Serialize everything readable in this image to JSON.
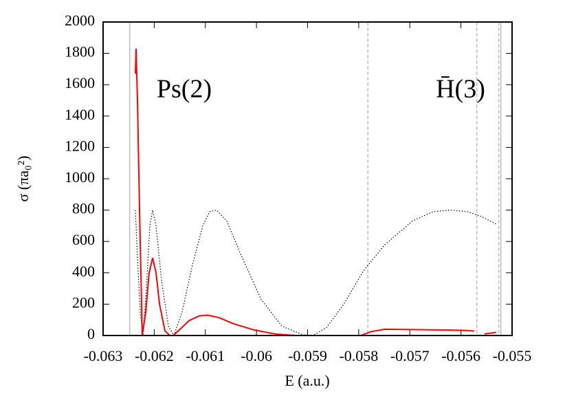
{
  "chart_data": {
    "type": "line",
    "xlabel": "E (a.u.)",
    "ylabel": "σ (πa₀²)",
    "annotations": [
      "Ps(2)",
      "H̄(3)"
    ],
    "xlim": [
      -0.063,
      -0.055
    ],
    "xticks": [
      -0.063,
      -0.062,
      -0.061,
      -0.06,
      -0.059,
      -0.058,
      -0.057,
      -0.056,
      -0.055
    ],
    "ylim": [
      0,
      2000
    ],
    "yticks": [
      0,
      200,
      400,
      600,
      800,
      1000,
      1200,
      1400,
      1600,
      1800,
      2000
    ],
    "vlines": [
      {
        "x": -0.06248,
        "style": "solid"
      },
      {
        "x": -0.05782,
        "style": "dashed"
      },
      {
        "x": -0.05569,
        "style": "dashed"
      },
      {
        "x": -0.05526,
        "style": "dashed"
      },
      {
        "x": -0.05522,
        "style": "solid"
      }
    ],
    "vline_color": "#bbbbbb",
    "series": [
      {
        "color": "#000000",
        "style": "dotted",
        "x": [
          -0.062368,
          -0.062328,
          -0.062274,
          -0.06222,
          -0.062153,
          -0.062086,
          -0.062032,
          -0.061964,
          -0.061857,
          -0.061723,
          -0.061615,
          -0.061454,
          -0.061252,
          -0.06105,
          -0.060916,
          -0.060782,
          -0.06058,
          -0.060311,
          -0.059908,
          -0.059504,
          -0.059101,
          -0.058899,
          -0.05863,
          -0.058294,
          -0.057891,
          -0.057487,
          -0.05695,
          -0.056546,
          -0.05621,
          -0.055874,
          -0.055605,
          -0.055309
        ],
        "values": [
          800,
          500,
          150,
          0,
          300,
          700,
          800,
          700,
          350,
          60,
          0,
          150,
          450,
          700,
          790,
          800,
          730,
          520,
          230,
          60,
          5,
          0,
          50,
          200,
          420,
          580,
          730,
          790,
          800,
          790,
          760,
          710
        ]
      },
      {
        "color": "#ff0000",
        "style": "solid",
        "x": [
          -0.062368,
          -0.062355,
          -0.062328,
          -0.062287,
          -0.062234,
          -0.062166,
          -0.062099,
          -0.062032,
          -0.061964,
          -0.061897,
          -0.06179,
          -0.061696,
          -0.061629,
          -0.061494,
          -0.061319,
          -0.061118,
          -0.060956,
          -0.060741,
          -0.060445,
          -0.060042,
          -0.059639,
          -0.059235,
          -0.058899,
          -0.058429,
          -0.057958,
          -0.057756,
          -0.057487,
          -0.05695,
          -0.056277,
          -0.055874,
          -0.055739,
          -0.055672,
          -0.055538,
          -0.055309
        ],
        "values": [
          1670,
          1830,
          1500,
          800,
          0,
          150,
          400,
          495,
          400,
          200,
          30,
          0,
          0,
          40,
          95,
          125,
          130,
          115,
          75,
          35,
          10,
          0,
          0,
          0,
          0,
          25,
          40,
          38,
          35,
          32,
          28,
          null,
          10,
          20
        ]
      }
    ]
  }
}
